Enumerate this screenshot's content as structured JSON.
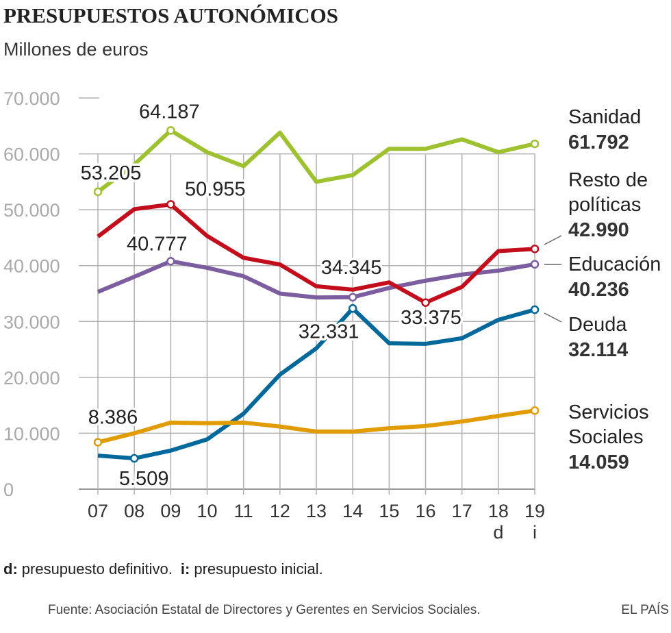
{
  "chart_data": {
    "type": "line",
    "title": "PRESUPUESTOS AUTONÓMICOS",
    "subtitle": "Millones de euros",
    "categories": [
      "07",
      "08",
      "09",
      "10",
      "11",
      "12",
      "13",
      "14",
      "15",
      "16",
      "17",
      "18",
      "19"
    ],
    "category_notes": {
      "18": "d",
      "19": "i"
    },
    "ylim": [
      0,
      70000
    ],
    "yticks": [
      0,
      10000,
      20000,
      30000,
      40000,
      50000,
      60000,
      70000
    ],
    "ytick_labels": [
      "0",
      "10.000",
      "20.000",
      "30.000",
      "40.000",
      "50.000",
      "60.000",
      "70.000"
    ],
    "grid": true,
    "series": [
      {
        "name": "Sanidad",
        "label_lines": [
          "Sanidad"
        ],
        "end_label": "61.792",
        "color": "#9dc12f",
        "values": [
          53205,
          58100,
          64187,
          60300,
          57800,
          63800,
          55000,
          56200,
          60900,
          60900,
          62600,
          60300,
          61792
        ]
      },
      {
        "name": "Resto de políticas",
        "label_lines": [
          "Resto de",
          "políticas"
        ],
        "end_label": "42.990",
        "color": "#c40d1c",
        "values": [
          45200,
          50100,
          50955,
          45300,
          41400,
          40200,
          36300,
          35700,
          37000,
          33375,
          36200,
          42600,
          42990
        ]
      },
      {
        "name": "Educación",
        "label_lines": [
          "Educación"
        ],
        "end_label": "40.236",
        "color": "#7b5da0",
        "values": [
          35300,
          38000,
          40777,
          39600,
          38100,
          35000,
          34300,
          34345,
          36000,
          37300,
          38400,
          39100,
          40236
        ]
      },
      {
        "name": "Deuda",
        "label_lines": [
          "Deuda"
        ],
        "end_label": "32.114",
        "color": "#00689a",
        "values": [
          6000,
          5509,
          6900,
          8900,
          13500,
          20500,
          25200,
          32331,
          26100,
          26000,
          27000,
          30300,
          32114
        ]
      },
      {
        "name": "Servicios Sociales",
        "label_lines": [
          "Servicios",
          "Sociales"
        ],
        "end_label": "14.059",
        "color": "#e09c00",
        "values": [
          8386,
          10000,
          11900,
          11800,
          11900,
          11200,
          10300,
          10300,
          10900,
          11300,
          12100,
          13100,
          14059
        ]
      }
    ],
    "annotations": [
      {
        "series": 0,
        "index": 0,
        "text": "53.205"
      },
      {
        "series": 0,
        "index": 2,
        "text": "64.187"
      },
      {
        "series": 1,
        "index": 2,
        "text": "50.955"
      },
      {
        "series": 2,
        "index": 2,
        "text": "40.777"
      },
      {
        "series": 2,
        "index": 7,
        "text": "34.345"
      },
      {
        "series": 3,
        "index": 7,
        "text": "32.331"
      },
      {
        "series": 1,
        "index": 9,
        "text": "33.375"
      },
      {
        "series": 4,
        "index": 0,
        "text": "8.386"
      },
      {
        "series": 3,
        "index": 1,
        "text": "5.509"
      }
    ]
  },
  "footnote": {
    "d_key": "d:",
    "d_text": "presupuesto definitivo.",
    "i_key": "i:",
    "i_text": "presupuesto inicial."
  },
  "source": "Fuente: Asociación Estatal de Directores y Gerentes en Servicios Sociales.",
  "brand": "EL PAÍS"
}
